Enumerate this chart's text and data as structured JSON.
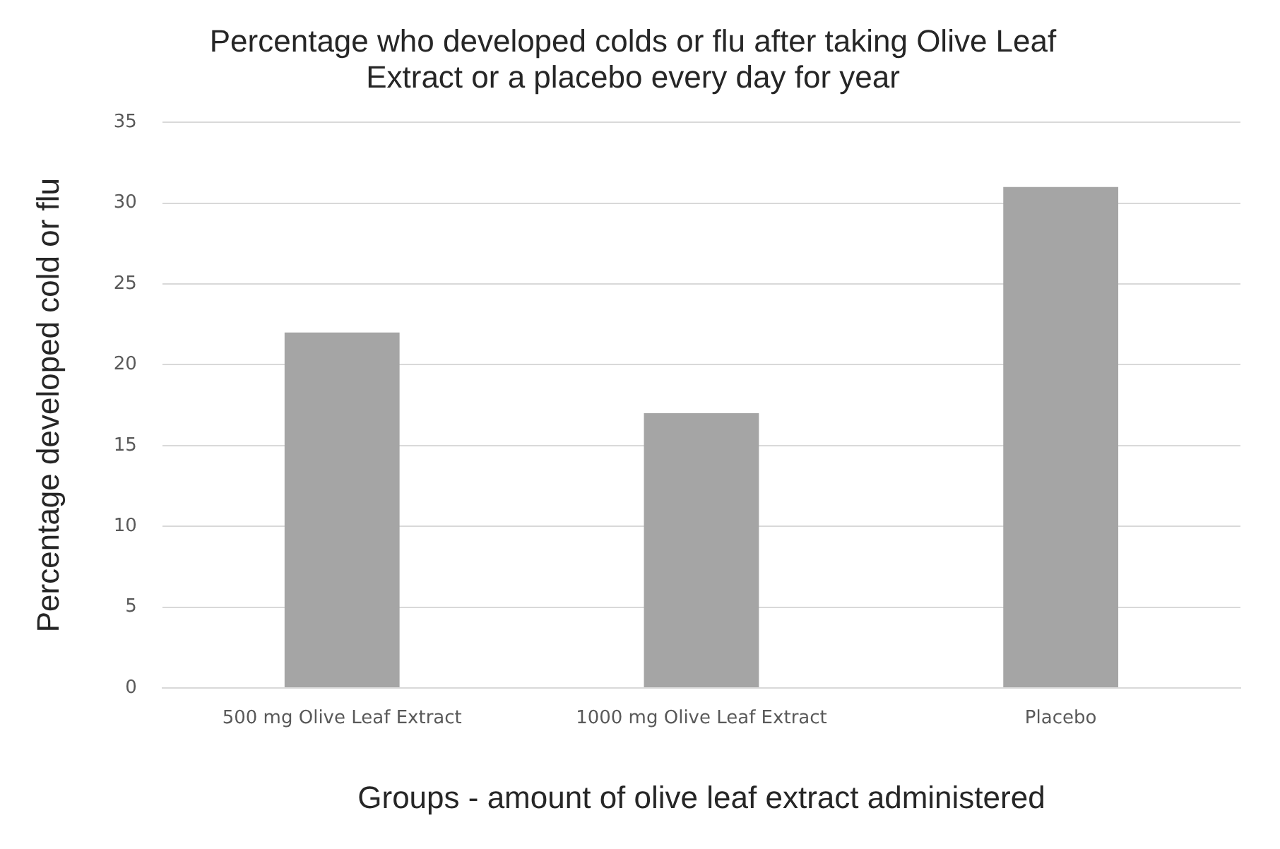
{
  "chart_data": {
    "type": "bar",
    "title": "Percentage who developed colds or flu after taking Olive Leaf Extract or a placebo every day for year",
    "xlabel": "Groups - amount of olive leaf extract administered",
    "ylabel": "Percentage developed cold or flu",
    "categories": [
      "500 mg Olive Leaf Extract",
      "1000 mg Olive Leaf Extract",
      "Placebo"
    ],
    "values": [
      22,
      17,
      31
    ],
    "color": "#a5a5a5",
    "ylim": [
      0,
      35
    ],
    "yticks": [
      0,
      5,
      10,
      15,
      20,
      25,
      30,
      35
    ],
    "grid": "y",
    "legend": false
  }
}
